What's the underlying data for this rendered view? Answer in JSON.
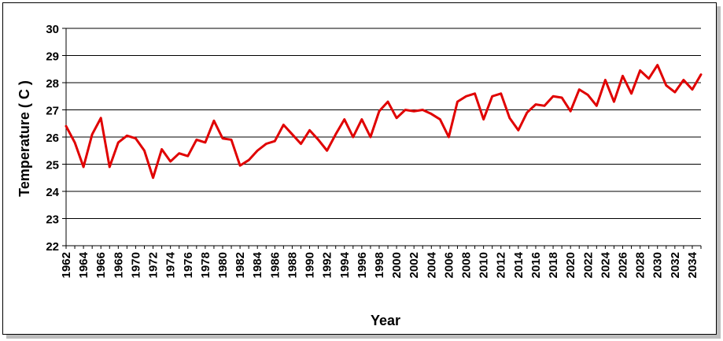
{
  "chart_data": {
    "type": "line",
    "xlabel": "Year",
    "ylabel": "Temperature ( C )",
    "ylim": [
      22,
      30
    ],
    "yticks": [
      22,
      23,
      24,
      25,
      26,
      27,
      28,
      29,
      30
    ],
    "xlim": [
      1962,
      2035
    ],
    "xticks": [
      1962,
      1964,
      1966,
      1968,
      1970,
      1972,
      1974,
      1976,
      1978,
      1980,
      1982,
      1984,
      1986,
      1988,
      1990,
      1992,
      1994,
      1996,
      1998,
      2000,
      2002,
      2004,
      2006,
      2008,
      2010,
      2012,
      2014,
      2016,
      2018,
      2020,
      2022,
      2024,
      2026,
      2028,
      2030,
      2032,
      2034
    ],
    "grid": true,
    "legend": "none",
    "series": [
      {
        "color": "#e00000",
        "x": [
          1962,
          1963,
          1964,
          1965,
          1966,
          1967,
          1968,
          1969,
          1970,
          1971,
          1972,
          1973,
          1974,
          1975,
          1976,
          1977,
          1978,
          1979,
          1980,
          1981,
          1982,
          1983,
          1984,
          1985,
          1986,
          1987,
          1988,
          1989,
          1990,
          1991,
          1992,
          1993,
          1994,
          1995,
          1996,
          1997,
          1998,
          1999,
          2000,
          2001,
          2002,
          2003,
          2004,
          2005,
          2006,
          2007,
          2008,
          2009,
          2010,
          2011,
          2012,
          2013,
          2014,
          2015,
          2016,
          2017,
          2018,
          2019,
          2020,
          2021,
          2022,
          2023,
          2024,
          2025,
          2026,
          2027,
          2028,
          2029,
          2030,
          2031,
          2032,
          2033,
          2034,
          2035
        ],
        "values": [
          26.4,
          25.8,
          24.9,
          26.1,
          26.7,
          24.9,
          25.8,
          26.05,
          25.95,
          25.5,
          24.5,
          25.55,
          25.1,
          25.4,
          25.3,
          25.9,
          25.8,
          26.6,
          25.95,
          25.9,
          24.95,
          25.15,
          25.5,
          25.75,
          25.85,
          26.45,
          26.1,
          25.75,
          26.25,
          25.9,
          25.5,
          26.1,
          26.65,
          26.0,
          26.65,
          26.0,
          26.95,
          27.3,
          26.7,
          27.0,
          26.95,
          27.0,
          26.85,
          26.65,
          26.0,
          27.3,
          27.5,
          27.6,
          26.65,
          27.5,
          27.6,
          26.7,
          26.25,
          26.9,
          27.2,
          27.15,
          27.5,
          27.45,
          26.95,
          27.75,
          27.55,
          27.15,
          28.1,
          27.3,
          28.25,
          27.6,
          28.45,
          28.15,
          28.65,
          27.9,
          27.65,
          28.1,
          27.75,
          28.3
        ]
      }
    ]
  }
}
